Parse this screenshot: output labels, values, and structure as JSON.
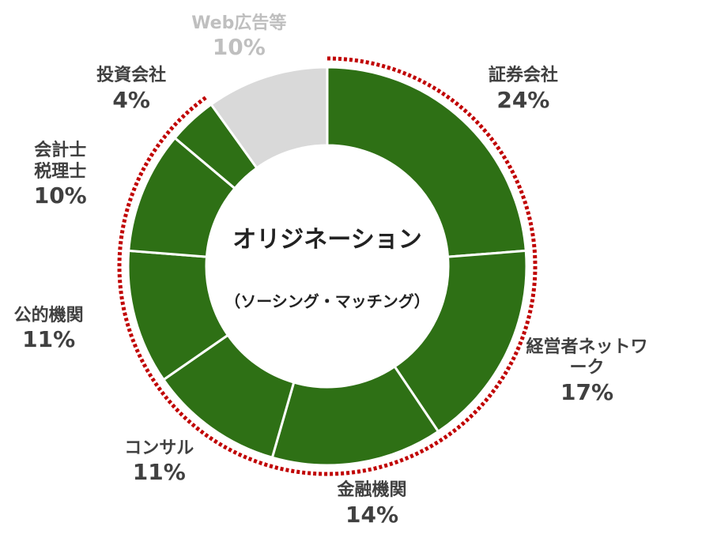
{
  "chart_data": {
    "type": "donut",
    "center_title": "オリジネーション",
    "center_subtitle": "（ソーシング・マッチング）",
    "categories": [
      "証券会社",
      "経営者ネットワーク",
      "金融機関",
      "コンサル",
      "公的機関",
      "会計士\n税理士",
      "投資会社",
      "Web広告等"
    ],
    "values": [
      24,
      17,
      14,
      11,
      11,
      10,
      4,
      10
    ],
    "value_labels": [
      "24%",
      "17%",
      "14%",
      "11%",
      "11%",
      "10%",
      "4%",
      "10%"
    ],
    "colors": [
      "#2e7015",
      "#2e7015",
      "#2e7015",
      "#2e7015",
      "#2e7015",
      "#2e7015",
      "#2e7015",
      "#d9d9d9"
    ],
    "label_colors": [
      "#404040",
      "#404040",
      "#404040",
      "#404040",
      "#404040",
      "#404040",
      "#404040",
      "#bfbfbf"
    ],
    "highlight_color": "#c00000"
  }
}
